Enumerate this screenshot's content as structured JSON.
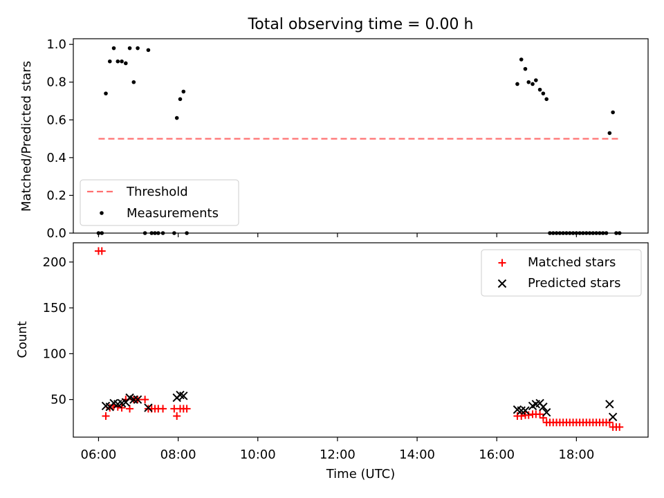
{
  "chart_data": [
    {
      "type": "scatter",
      "title": "Total observing time = 0.00 h",
      "xlabel": "",
      "ylabel": "Matched/Predicted stars",
      "xlim": [
        "05:22",
        "19:48"
      ],
      "ylim": [
        0,
        1.03
      ],
      "yticks": [
        "0.0",
        "0.2",
        "0.4",
        "0.6",
        "0.8",
        "1.0"
      ],
      "legend_position": "lower-left",
      "threshold": {
        "label": "Threshold",
        "value": 0.5,
        "x_start": "06:00",
        "x_end": "19:06",
        "color": "#ff7070"
      },
      "series": [
        {
          "name": "Measurements",
          "color": "#000000",
          "x": [
            "06:00",
            "06:05",
            "06:11",
            "06:17",
            "06:23",
            "06:29",
            "06:35",
            "06:41",
            "06:47",
            "06:53",
            "06:59",
            "07:10",
            "07:15",
            "07:20",
            "07:25",
            "07:30",
            "07:37",
            "07:54",
            "07:58",
            "08:03",
            "08:08",
            "08:13",
            "16:31",
            "16:37",
            "16:43",
            "16:48",
            "16:54",
            "16:59",
            "17:05",
            "17:10",
            "17:15",
            "17:20",
            "17:25",
            "17:30",
            "17:35",
            "17:40",
            "17:45",
            "17:50",
            "17:55",
            "18:00",
            "18:05",
            "18:10",
            "18:15",
            "18:20",
            "18:25",
            "18:30",
            "18:35",
            "18:40",
            "18:45",
            "18:50",
            "18:55",
            "19:00",
            "19:05"
          ],
          "y": [
            0,
            0,
            0.74,
            0.91,
            0.98,
            0.91,
            0.91,
            0.9,
            0.98,
            0.8,
            0.98,
            0,
            0.97,
            0,
            0,
            0,
            0,
            0,
            0.61,
            0.71,
            0.75,
            0,
            0.79,
            0.92,
            0.87,
            0.8,
            0.79,
            0.81,
            0.76,
            0.74,
            0.71,
            0,
            0,
            0,
            0,
            0,
            0,
            0,
            0,
            0,
            0,
            0,
            0,
            0,
            0,
            0,
            0,
            0,
            0,
            0.53,
            0.64,
            0,
            0
          ]
        }
      ]
    },
    {
      "type": "scatter",
      "title": "",
      "xlabel": "Time (UTC)",
      "ylabel": "Count",
      "xlim": [
        "05:22",
        "19:48"
      ],
      "ylim": [
        9,
        221
      ],
      "xticks": [
        "06:00",
        "08:00",
        "10:00",
        "12:00",
        "14:00",
        "16:00",
        "18:00"
      ],
      "yticks": [
        "50",
        "100",
        "150",
        "200"
      ],
      "legend_position": "upper-right",
      "series": [
        {
          "name": "Matched stars",
          "marker": "plus",
          "color": "#ff0000",
          "x": [
            "06:00",
            "06:05",
            "06:11",
            "06:17",
            "06:23",
            "06:29",
            "06:35",
            "06:41",
            "06:47",
            "06:53",
            "06:59",
            "07:10",
            "07:15",
            "07:20",
            "07:25",
            "07:30",
            "07:37",
            "07:54",
            "07:58",
            "08:03",
            "08:08",
            "08:13",
            "16:31",
            "16:37",
            "16:43",
            "16:48",
            "16:54",
            "16:59",
            "17:05",
            "17:10",
            "17:15",
            "17:20",
            "17:25",
            "17:30",
            "17:35",
            "17:40",
            "17:45",
            "17:50",
            "17:55",
            "18:00",
            "18:05",
            "18:10",
            "18:15",
            "18:20",
            "18:25",
            "18:30",
            "18:35",
            "18:40",
            "18:45",
            "18:50",
            "18:55",
            "19:00",
            "19:05"
          ],
          "y": [
            212,
            212,
            32,
            41,
            43,
            42,
            41,
            50,
            40,
            50,
            50,
            50,
            40,
            40,
            40,
            40,
            40,
            40,
            32,
            40,
            40,
            40,
            32,
            32,
            33,
            33,
            34,
            34,
            34,
            30,
            25,
            25,
            25,
            25,
            25,
            25,
            25,
            25,
            25,
            25,
            25,
            25,
            25,
            25,
            25,
            25,
            25,
            25,
            25,
            25,
            20,
            20,
            20
          ]
        },
        {
          "name": "Predicted stars",
          "marker": "x",
          "color": "#000000",
          "x": [
            "06:11",
            "06:17",
            "06:23",
            "06:29",
            "06:35",
            "06:41",
            "06:47",
            "06:53",
            "06:59",
            "07:15",
            "07:58",
            "08:03",
            "08:08",
            "16:31",
            "16:37",
            "16:43",
            "16:54",
            "16:59",
            "17:05",
            "17:10",
            "17:15",
            "18:50",
            "18:55"
          ],
          "y": [
            43,
            42,
            46,
            45,
            46,
            47,
            52,
            50,
            50,
            41,
            52,
            55,
            54,
            39,
            38,
            38,
            43,
            45,
            46,
            42,
            36,
            45,
            31
          ]
        }
      ]
    }
  ]
}
